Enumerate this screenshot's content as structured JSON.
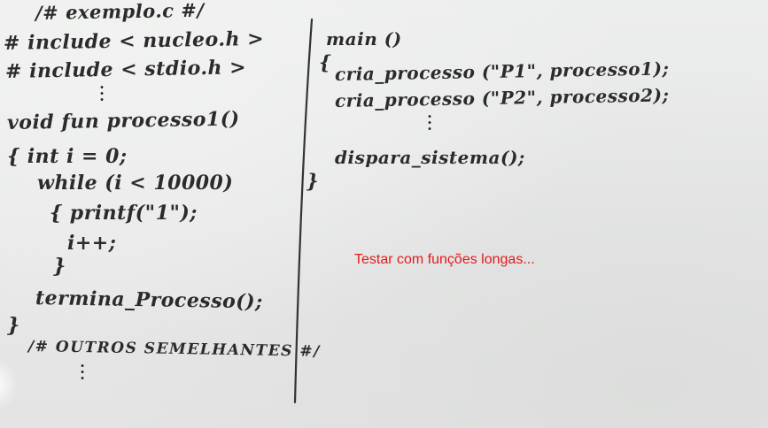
{
  "left_column": {
    "header_comment": "/# exemplo.c #/",
    "include_1": "# include < nucleo.h >",
    "include_2": "# include < stdio.h >",
    "function_signature": "void fun processo1()",
    "brace_open_stmt": "{  int i = 0;",
    "while_stmt": "while (i < 10000)",
    "printf_stmt": "{ printf(\"1\");",
    "increment_stmt": "i++;",
    "inner_brace_close": "}",
    "termina_stmt": "termina_Processo();",
    "outer_brace_close": "}",
    "others_comment": "/# OUTROS SEMELHANTES #/"
  },
  "right_column": {
    "main_signature": "main ()",
    "main_brace_open": "{",
    "cria_1": "cria_processo (\"P1\", processo1);",
    "cria_2": "cria_processo (\"P2\", processo2);",
    "dispara": "dispara_sistema();",
    "main_brace_close": "}"
  },
  "note": {
    "text": "Testar com funções longas...",
    "color": "#e31b1b"
  }
}
